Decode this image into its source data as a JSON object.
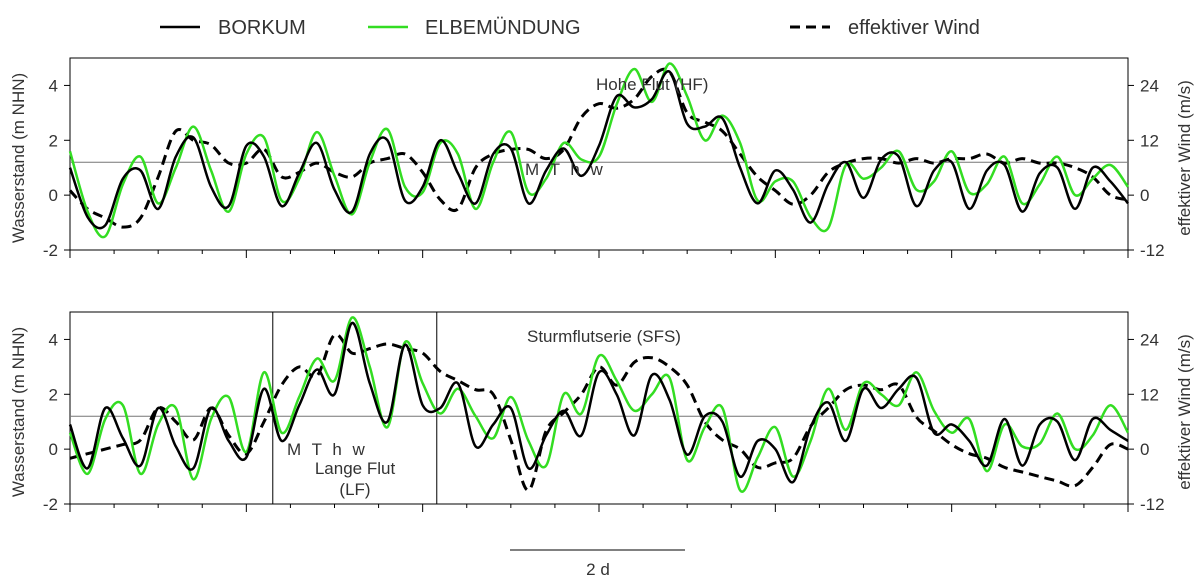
{
  "legend": {
    "items": [
      {
        "label": "BORKUM",
        "color": "#000000",
        "style": "solid"
      },
      {
        "label": "ELBEMÜNDUNG",
        "color": "#33dd22",
        "style": "solid"
      },
      {
        "label": "effektiver Wind",
        "color": "#000000",
        "style": "dashed"
      }
    ]
  },
  "scale_bar": {
    "label": "2 d"
  },
  "chart_data": [
    {
      "type": "line",
      "panel": "top",
      "annotation": "Hohe Flut (HF)",
      "reference_line": {
        "label": "M T h w",
        "value": 1.2
      },
      "ylabel": "Wasserstand (m NHN)",
      "y2label": "effektiver Wind (m/s)",
      "ylim": [
        -2,
        5
      ],
      "y2lim": [
        -12,
        30
      ],
      "yticks": [
        "-2",
        "0",
        "2",
        "4"
      ],
      "y2ticks": [
        "-12",
        "0",
        "12",
        "24"
      ],
      "xlim": [
        0,
        6
      ],
      "x_unit": "d",
      "grid": false,
      "series": [
        {
          "name": "BORKUM",
          "color": "#000000",
          "axis": "left",
          "x": [
            0.0,
            0.1,
            0.2,
            0.3,
            0.4,
            0.5,
            0.6,
            0.7,
            0.8,
            0.9,
            1.0,
            1.1,
            1.2,
            1.3,
            1.4,
            1.5,
            1.6,
            1.7,
            1.8,
            1.9,
            2.0,
            2.1,
            2.2,
            2.3,
            2.4,
            2.5,
            2.6,
            2.7,
            2.8,
            2.9,
            3.0,
            3.1,
            3.2,
            3.3,
            3.4,
            3.5,
            3.6,
            3.7,
            3.8,
            3.9,
            4.0,
            4.1,
            4.2,
            4.3,
            4.4,
            4.5,
            4.6,
            4.7,
            4.8,
            4.9,
            5.0,
            5.1,
            5.2,
            5.3,
            5.4,
            5.5,
            5.6,
            5.7,
            5.8,
            5.9,
            6.0
          ],
          "y": [
            1.0,
            -0.8,
            -1.1,
            0.6,
            0.9,
            -0.5,
            1.4,
            2.1,
            0.3,
            -0.4,
            1.8,
            1.4,
            -0.4,
            0.8,
            1.9,
            0.2,
            -0.6,
            1.5,
            2.0,
            -0.2,
            0.3,
            2.0,
            0.8,
            -0.3,
            1.5,
            1.7,
            -0.3,
            0.9,
            1.7,
            0.7,
            1.8,
            3.6,
            3.2,
            3.5,
            4.5,
            2.6,
            2.5,
            2.8,
            1.0,
            -0.3,
            0.9,
            0.2,
            -1.0,
            0.4,
            1.2,
            -0.1,
            1.3,
            1.4,
            -0.4,
            0.9,
            1.2,
            -0.5,
            0.9,
            1.1,
            -0.6,
            0.8,
            1.0,
            -0.5,
            1.0,
            0.5,
            -0.3
          ]
        },
        {
          "name": "ELBEMÜNDUNG",
          "color": "#33dd22",
          "axis": "left",
          "x": [
            0.0,
            0.1,
            0.2,
            0.3,
            0.4,
            0.5,
            0.6,
            0.7,
            0.8,
            0.9,
            1.0,
            1.1,
            1.2,
            1.3,
            1.4,
            1.5,
            1.6,
            1.7,
            1.8,
            1.9,
            2.0,
            2.1,
            2.2,
            2.3,
            2.4,
            2.5,
            2.6,
            2.7,
            2.8,
            2.9,
            3.0,
            3.1,
            3.2,
            3.3,
            3.4,
            3.5,
            3.6,
            3.7,
            3.8,
            3.9,
            4.0,
            4.1,
            4.2,
            4.3,
            4.4,
            4.5,
            4.6,
            4.7,
            4.8,
            4.9,
            5.0,
            5.1,
            5.2,
            5.3,
            5.4,
            5.5,
            5.6,
            5.7,
            5.8,
            5.9,
            6.0
          ],
          "y": [
            1.6,
            -0.6,
            -1.5,
            0.4,
            1.4,
            -0.3,
            1.0,
            2.5,
            0.9,
            -0.6,
            1.5,
            2.1,
            -0.2,
            0.6,
            2.3,
            0.7,
            -0.7,
            1.2,
            2.4,
            0.3,
            0.1,
            1.9,
            1.5,
            -0.5,
            1.2,
            2.3,
            0.1,
            0.6,
            1.9,
            1.3,
            1.4,
            3.3,
            4.6,
            3.4,
            4.8,
            3.6,
            2.0,
            2.9,
            1.9,
            -0.2,
            0.5,
            0.5,
            -0.8,
            -1.2,
            1.1,
            0.6,
            1.0,
            1.6,
            0.2,
            0.5,
            1.6,
            0.1,
            0.4,
            1.4,
            -0.3,
            0.4,
            1.4,
            0.0,
            0.6,
            1.1,
            0.3
          ]
        },
        {
          "name": "effektiver Wind",
          "color": "#000000",
          "axis": "right",
          "dashed": true,
          "x": [
            0.0,
            0.1,
            0.2,
            0.3,
            0.4,
            0.5,
            0.6,
            0.7,
            0.8,
            0.9,
            1.0,
            1.1,
            1.2,
            1.3,
            1.4,
            1.5,
            1.6,
            1.7,
            1.8,
            1.9,
            2.0,
            2.1,
            2.2,
            2.3,
            2.4,
            2.5,
            2.6,
            2.7,
            2.8,
            2.9,
            3.0,
            3.1,
            3.2,
            3.3,
            3.4,
            3.5,
            3.6,
            3.7,
            3.8,
            3.9,
            4.0,
            4.1,
            4.2,
            4.3,
            4.4,
            4.5,
            4.6,
            4.7,
            4.8,
            4.9,
            5.0,
            5.1,
            5.2,
            5.3,
            5.4,
            5.5,
            5.6,
            5.7,
            5.8,
            5.9,
            6.0
          ],
          "y": [
            1,
            -3,
            -5,
            -7,
            -5,
            4,
            14,
            12,
            11,
            7,
            7,
            10,
            4,
            5,
            7,
            5,
            4,
            7,
            8,
            9,
            5,
            -1,
            -3,
            6,
            9,
            10,
            10,
            8,
            10,
            17,
            20,
            19,
            21,
            26,
            27,
            18,
            16,
            14,
            9,
            4,
            1,
            -2,
            0,
            5,
            7,
            8,
            8,
            7,
            8,
            7,
            8,
            8,
            9,
            7,
            8,
            7,
            7,
            6,
            4,
            0,
            -1
          ]
        }
      ]
    },
    {
      "type": "line",
      "panel": "bottom",
      "annotation": "Sturmflutserie (SFS)",
      "box_annotation": {
        "label_line1": "Lange Flut",
        "label_line2": "(LF)",
        "x_start": 1.15,
        "x_end": 2.08
      },
      "reference_line": {
        "label": "M T h w",
        "value": 1.2
      },
      "ylabel": "Wasserstand (m NHN)",
      "y2label": "effektiver Wind (m/s)",
      "ylim": [
        -2,
        5
      ],
      "y2lim": [
        -12,
        30
      ],
      "yticks": [
        "-2",
        "0",
        "2",
        "4"
      ],
      "y2ticks": [
        "-12",
        "0",
        "12",
        "24"
      ],
      "xlim": [
        0,
        6
      ],
      "x_unit": "d",
      "grid": false,
      "series": [
        {
          "name": "BORKUM",
          "color": "#000000",
          "axis": "left",
          "x": [
            0.0,
            0.1,
            0.2,
            0.3,
            0.4,
            0.5,
            0.6,
            0.7,
            0.8,
            0.9,
            1.0,
            1.1,
            1.2,
            1.3,
            1.4,
            1.5,
            1.6,
            1.7,
            1.8,
            1.9,
            2.0,
            2.1,
            2.2,
            2.3,
            2.4,
            2.5,
            2.6,
            2.7,
            2.8,
            2.9,
            3.0,
            3.1,
            3.2,
            3.3,
            3.4,
            3.5,
            3.6,
            3.7,
            3.8,
            3.9,
            4.0,
            4.1,
            4.2,
            4.3,
            4.4,
            4.5,
            4.6,
            4.7,
            4.8,
            4.9,
            5.0,
            5.1,
            5.2,
            5.3,
            5.4,
            5.5,
            5.6,
            5.7,
            5.8,
            5.9,
            6.0
          ],
          "y": [
            0.9,
            -0.7,
            1.5,
            0.4,
            -0.6,
            1.5,
            0.1,
            -0.7,
            1.5,
            0.3,
            -0.3,
            2.2,
            0.3,
            1.6,
            2.9,
            2.0,
            4.6,
            2.4,
            1.0,
            3.8,
            1.6,
            1.5,
            2.4,
            0.1,
            0.9,
            1.5,
            -0.7,
            0.5,
            1.4,
            0.5,
            2.8,
            2.0,
            0.5,
            2.7,
            1.8,
            -0.2,
            1.2,
            1.0,
            -1.0,
            0.3,
            0.0,
            -1.2,
            0.8,
            1.7,
            0.3,
            2.2,
            1.5,
            2.2,
            2.6,
            0.6,
            0.9,
            0.3,
            -0.6,
            1.1,
            -0.6,
            0.9,
            1.0,
            -0.4,
            1.1,
            0.7,
            0.3
          ]
        },
        {
          "name": "ELBEMÜNDUNG",
          "color": "#33dd22",
          "axis": "left",
          "x": [
            0.0,
            0.1,
            0.2,
            0.3,
            0.4,
            0.5,
            0.6,
            0.7,
            0.8,
            0.9,
            1.0,
            1.1,
            1.2,
            1.3,
            1.4,
            1.5,
            1.6,
            1.7,
            1.8,
            1.9,
            2.0,
            2.1,
            2.2,
            2.3,
            2.4,
            2.5,
            2.6,
            2.7,
            2.8,
            2.9,
            3.0,
            3.1,
            3.2,
            3.3,
            3.4,
            3.5,
            3.6,
            3.7,
            3.8,
            3.9,
            4.0,
            4.1,
            4.2,
            4.3,
            4.4,
            4.5,
            4.6,
            4.7,
            4.8,
            4.9,
            5.0,
            5.1,
            5.2,
            5.3,
            5.4,
            5.5,
            5.6,
            5.7,
            5.8,
            5.9,
            6.0
          ],
          "y": [
            0.6,
            -0.9,
            1.1,
            1.6,
            -0.9,
            0.9,
            1.5,
            -1.1,
            1.1,
            1.9,
            -0.1,
            2.8,
            0.6,
            1.9,
            3.3,
            2.5,
            4.8,
            3.0,
            0.8,
            3.9,
            2.4,
            1.3,
            2.2,
            1.2,
            0.4,
            1.9,
            0.3,
            -0.6,
            2.0,
            1.3,
            3.4,
            2.5,
            1.4,
            2.0,
            2.6,
            -0.4,
            0.8,
            1.5,
            -1.5,
            -0.3,
            0.8,
            -1.0,
            0.3,
            2.2,
            0.7,
            2.4,
            2.0,
            1.6,
            2.8,
            1.4,
            0.6,
            1.1,
            -0.8,
            0.9,
            0.1,
            0.2,
            1.3,
            0.0,
            0.5,
            1.6,
            0.6
          ]
        },
        {
          "name": "effektiver Wind",
          "color": "#000000",
          "axis": "right",
          "dashed": true,
          "x": [
            0.0,
            0.1,
            0.2,
            0.3,
            0.4,
            0.5,
            0.6,
            0.7,
            0.8,
            0.9,
            1.0,
            1.1,
            1.2,
            1.3,
            1.4,
            1.5,
            1.6,
            1.7,
            1.8,
            1.9,
            2.0,
            2.1,
            2.2,
            2.3,
            2.4,
            2.5,
            2.6,
            2.7,
            2.8,
            2.9,
            3.0,
            3.1,
            3.2,
            3.3,
            3.4,
            3.5,
            3.6,
            3.7,
            3.8,
            3.9,
            4.0,
            4.1,
            4.2,
            4.3,
            4.4,
            4.5,
            4.6,
            4.7,
            4.8,
            4.9,
            5.0,
            5.1,
            5.2,
            5.3,
            5.4,
            5.5,
            5.6,
            5.7,
            5.8,
            5.9,
            6.0
          ],
          "y": [
            -2,
            -1,
            0,
            1,
            2,
            9,
            6,
            2,
            9,
            3,
            -1,
            6,
            14,
            18,
            16,
            25,
            21,
            22,
            23,
            22,
            21,
            17,
            15,
            13,
            12,
            2,
            -9,
            4,
            8,
            12,
            18,
            14,
            19,
            20,
            18,
            14,
            6,
            2,
            0,
            -4,
            -3,
            -2,
            5,
            9,
            13,
            14,
            13,
            14,
            7,
            4,
            1,
            -1,
            -2,
            -4,
            -5,
            -6,
            -7,
            -8,
            -4,
            1,
            0
          ]
        }
      ]
    }
  ]
}
